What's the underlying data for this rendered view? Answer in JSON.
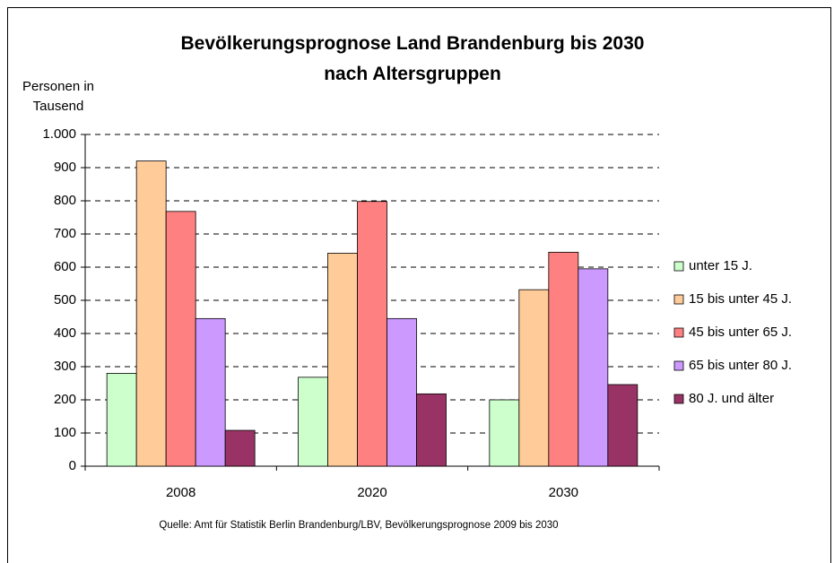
{
  "chart_data": {
    "type": "bar",
    "title": "Bevölkerungsprognose Land Brandenburg bis 2030 nach Altersgruppen",
    "ylabel": "Personen in Tausend",
    "note": "Quelle: Amt für Statistik Berlin Brandenburg/LBV, Bevölkerungsprognose 2009 bis 2030",
    "categories": [
      "2008",
      "2020",
      "2030"
    ],
    "series": [
      {
        "name": "unter 15 J.",
        "color": "#ccffcc",
        "values": [
          280,
          268,
          200
        ]
      },
      {
        "name": "15 bis unter 45 J.",
        "color": "#ffcc99",
        "values": [
          920,
          642,
          532
        ]
      },
      {
        "name": "45 bis unter 65 J.",
        "color": "#ff8080",
        "values": [
          768,
          798,
          645
        ]
      },
      {
        "name": "65 bis unter 80 J.",
        "color": "#cc99ff",
        "values": [
          445,
          445,
          595
        ]
      },
      {
        "name": "80 J. und älter",
        "color": "#993366",
        "values": [
          108,
          218,
          246
        ]
      }
    ],
    "ylim": [
      0,
      1000
    ],
    "yticks": [
      0,
      100,
      200,
      300,
      400,
      500,
      600,
      700,
      800,
      900,
      {
        "value": 1000,
        "label": "1.000"
      }
    ],
    "grid": true,
    "legend": "right"
  }
}
